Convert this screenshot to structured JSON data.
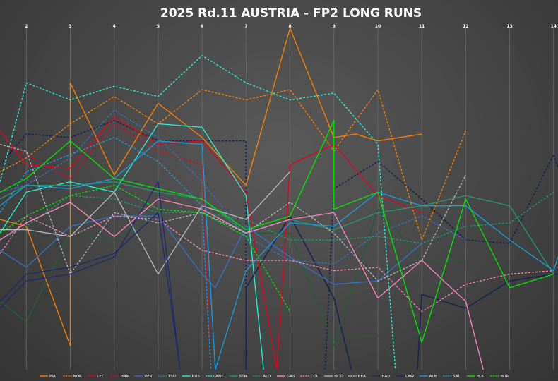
{
  "chart_data": {
    "type": "line",
    "title": "2025 Rd.11 AUSTRIA - FP2 LONG RUNS",
    "xlabel": "",
    "ylabel": "",
    "x_ticks": [
      2,
      3,
      4,
      5,
      6,
      7,
      8,
      9,
      10,
      11,
      12,
      13,
      14
    ],
    "xlim": [
      1.4,
      14.1
    ],
    "ylim": [
      0,
      100
    ],
    "grid": {
      "vertical": true,
      "horizontal": false
    },
    "legend_position": "bottom",
    "series": [
      {
        "name": "PIA",
        "color": "#ff8000",
        "dash": false,
        "values": [
          [
            1.4,
            44
          ],
          [
            2,
            42
          ],
          [
            3,
            7
          ],
          [
            3,
            84
          ],
          [
            4,
            57
          ],
          [
            5,
            78
          ],
          [
            6,
            68
          ],
          [
            7,
            54
          ],
          [
            8,
            100
          ],
          [
            9,
            68
          ],
          [
            9.5,
            69
          ],
          [
            10,
            67
          ],
          [
            11,
            69
          ]
        ]
      },
      {
        "name": "NOR",
        "color": "#ff8000",
        "dash": true,
        "values": [
          [
            1.4,
            58
          ],
          [
            2,
            62
          ],
          [
            3,
            72
          ],
          [
            4,
            80
          ],
          [
            5,
            72
          ],
          [
            6,
            82
          ],
          [
            7,
            79
          ],
          [
            8,
            82
          ],
          [
            9,
            64
          ],
          [
            10,
            82
          ],
          [
            11,
            38
          ],
          [
            12,
            70
          ]
        ]
      },
      {
        "name": "LEC",
        "color": "#e80020",
        "dash": false,
        "values": [
          [
            1.4,
            70
          ],
          [
            2,
            60
          ],
          [
            3,
            59
          ],
          [
            4,
            74
          ],
          [
            5,
            66
          ],
          [
            6,
            67
          ],
          [
            7,
            52
          ],
          [
            7.7,
            0
          ],
          [
            8,
            60
          ],
          [
            9,
            66
          ],
          [
            10,
            51
          ],
          [
            11,
            46
          ]
        ]
      },
      {
        "name": "HAM",
        "color": "#e80020",
        "dash": true,
        "values": [
          [
            1.4,
            66
          ],
          [
            2,
            63
          ],
          [
            3,
            56
          ],
          [
            4,
            72
          ],
          [
            5,
            64
          ],
          [
            6,
            60
          ],
          [
            6.2,
            0
          ]
        ]
      },
      {
        "name": "VER",
        "color": "#3671c6",
        "dash": false,
        "values": [
          [
            1.4,
            35
          ],
          [
            2,
            30
          ],
          [
            3,
            42
          ],
          [
            4,
            45
          ],
          [
            5,
            45
          ],
          [
            6,
            28
          ],
          [
            6.3,
            24
          ],
          [
            7,
            42
          ],
          [
            8,
            33
          ],
          [
            9,
            25
          ],
          [
            10,
            26
          ],
          [
            11,
            37
          ]
        ]
      },
      {
        "name": "TSU",
        "color": "#3671c6",
        "dash": true,
        "values": [
          [
            1.4,
            52
          ],
          [
            2,
            54
          ],
          [
            3,
            62
          ],
          [
            4,
            76
          ],
          [
            5,
            68
          ],
          [
            6,
            55
          ],
          [
            7,
            39
          ],
          [
            8,
            32
          ],
          [
            9,
            31
          ],
          [
            10,
            40
          ],
          [
            11,
            45
          ],
          [
            12,
            38
          ]
        ]
      },
      {
        "name": "RUS",
        "color": "#27f4d2",
        "dash": false,
        "values": [
          [
            1.4,
            40
          ],
          [
            2,
            52
          ],
          [
            3,
            55
          ],
          [
            4,
            52
          ],
          [
            5,
            72
          ],
          [
            6,
            71
          ],
          [
            7,
            51
          ],
          [
            7.4,
            0
          ]
        ]
      },
      {
        "name": "ANT",
        "color": "#27f4d2",
        "dash": true,
        "values": [
          [
            1.4,
            55
          ],
          [
            2,
            84
          ],
          [
            3,
            79
          ],
          [
            4,
            83
          ],
          [
            5,
            80
          ],
          [
            6,
            92
          ],
          [
            7,
            84
          ],
          [
            8,
            79
          ],
          [
            9,
            81
          ],
          [
            10,
            66
          ],
          [
            10.4,
            0
          ]
        ]
      },
      {
        "name": "STR",
        "color": "#229971",
        "dash": false,
        "values": [
          [
            1.4,
            50
          ],
          [
            2,
            54
          ],
          [
            3,
            54
          ],
          [
            4,
            55
          ],
          [
            5,
            52
          ],
          [
            6,
            50
          ],
          [
            7,
            40
          ],
          [
            8,
            44
          ],
          [
            9,
            41
          ],
          [
            10,
            46
          ],
          [
            11,
            48
          ],
          [
            12,
            51
          ],
          [
            13,
            48
          ],
          [
            14,
            28
          ]
        ]
      },
      {
        "name": "ALO",
        "color": "#229971",
        "dash": true,
        "values": [
          [
            1.4,
            38
          ],
          [
            2,
            42
          ],
          [
            3,
            51
          ],
          [
            4,
            50
          ],
          [
            5,
            46
          ],
          [
            6,
            46
          ],
          [
            7,
            44
          ],
          [
            8,
            38
          ],
          [
            9,
            38
          ],
          [
            10,
            39
          ],
          [
            11,
            37
          ],
          [
            12,
            42
          ],
          [
            13,
            43
          ],
          [
            14,
            52
          ]
        ]
      },
      {
        "name": "GAS",
        "color": "#ff87bc",
        "dash": false,
        "values": [
          [
            1.4,
            38
          ],
          [
            2,
            43
          ],
          [
            3,
            49
          ],
          [
            4,
            39
          ],
          [
            5,
            50
          ],
          [
            6,
            47
          ],
          [
            7,
            40
          ],
          [
            8,
            44
          ],
          [
            9,
            46
          ],
          [
            10,
            21
          ],
          [
            11,
            32
          ],
          [
            12,
            20
          ],
          [
            12.4,
            0
          ]
        ]
      },
      {
        "name": "COL",
        "color": "#ff87bc",
        "dash": true,
        "values": [
          [
            1.4,
            34
          ],
          [
            2,
            45
          ],
          [
            3,
            39
          ],
          [
            4,
            45
          ],
          [
            5,
            44
          ],
          [
            6,
            35
          ],
          [
            7,
            32
          ],
          [
            8,
            32
          ],
          [
            9,
            29
          ],
          [
            10,
            30
          ],
          [
            11,
            17
          ],
          [
            12,
            25
          ],
          [
            13,
            28
          ],
          [
            14,
            29
          ]
        ]
      },
      {
        "name": "OCO",
        "color": "#b6babd",
        "dash": false,
        "values": [
          [
            1.4,
            41
          ],
          [
            2,
            41
          ],
          [
            3,
            39
          ],
          [
            4,
            52
          ],
          [
            5,
            28
          ],
          [
            6,
            48
          ],
          [
            7,
            44
          ],
          [
            8,
            58
          ]
        ]
      },
      {
        "name": "BEA",
        "color": "#b6babd",
        "dash": true,
        "values": [
          [
            1.4,
            66
          ],
          [
            2,
            64
          ],
          [
            3,
            28
          ],
          [
            4,
            46
          ],
          [
            5,
            43
          ],
          [
            6,
            46
          ],
          [
            7,
            40
          ],
          [
            8,
            49
          ],
          [
            9,
            40
          ],
          [
            10,
            26
          ],
          [
            11,
            32
          ],
          [
            12,
            57
          ]
        ]
      },
      {
        "name": "HAD",
        "color": "#1e2a6e",
        "dash": false,
        "values": [
          [
            1.4,
            18
          ],
          [
            2,
            26
          ],
          [
            3,
            28
          ],
          [
            4,
            33
          ],
          [
            5,
            55
          ],
          [
            5.5,
            0
          ]
        ]
      },
      {
        "name": "LAW",
        "color": "#1e2a6e",
        "dash": false,
        "values": [
          [
            1.4,
            20
          ],
          [
            2,
            28
          ],
          [
            3,
            30
          ],
          [
            4,
            34
          ],
          [
            5,
            46
          ],
          [
            5.5,
            0
          ]
        ]
      },
      {
        "name": "ALB",
        "color": "#1e9bdc",
        "dash": false,
        "values": [
          [
            1.4,
            48
          ],
          [
            2,
            54
          ],
          [
            3,
            53
          ],
          [
            4,
            56
          ],
          [
            5,
            67
          ],
          [
            6,
            66
          ],
          [
            6.3,
            0
          ],
          [
            7,
            29
          ],
          [
            8,
            43
          ],
          [
            9,
            42
          ],
          [
            10,
            52
          ],
          [
            11,
            48
          ],
          [
            12,
            48
          ],
          [
            13,
            38
          ],
          [
            14,
            29
          ],
          [
            14.1,
            33
          ]
        ]
      },
      {
        "name": "SAI",
        "color": "#1e9bdc",
        "dash": true,
        "values": [
          [
            1.4,
            46
          ],
          [
            2,
            58
          ],
          [
            3,
            63
          ],
          [
            4,
            68
          ],
          [
            5,
            61
          ],
          [
            6,
            48
          ],
          [
            6.2,
            0
          ]
        ]
      },
      {
        "name": "HUL",
        "color": "#00e701",
        "dash": false,
        "values": [
          [
            1.4,
            52
          ],
          [
            2,
            56
          ],
          [
            3,
            67
          ],
          [
            4,
            56
          ],
          [
            5,
            53
          ],
          [
            6,
            50
          ],
          [
            7,
            41
          ],
          [
            8,
            45
          ],
          [
            9,
            73
          ],
          [
            9,
            47
          ],
          [
            10,
            52
          ],
          [
            11,
            8
          ],
          [
            12,
            50
          ],
          [
            13,
            24
          ],
          [
            14,
            28
          ]
        ]
      },
      {
        "name": "BOR",
        "color": "#00e701",
        "dash": true,
        "values": [
          [
            1.4,
            40
          ],
          [
            2,
            45
          ],
          [
            3,
            51
          ],
          [
            4,
            54
          ],
          [
            5,
            47
          ],
          [
            6,
            46
          ],
          [
            7,
            39
          ],
          [
            8,
            17
          ]
        ]
      }
    ],
    "extra_lines": [
      {
        "color": "#1a2450",
        "dash": true,
        "values": [
          [
            1.4,
            60
          ],
          [
            2,
            69
          ],
          [
            3,
            68
          ],
          [
            4,
            73
          ],
          [
            5,
            67
          ],
          [
            6,
            67
          ],
          [
            7,
            67
          ],
          [
            7,
            0
          ]
        ]
      },
      {
        "color": "#1a2450",
        "dash": true,
        "values": [
          [
            8.8,
            0
          ],
          [
            9,
            53
          ],
          [
            10,
            61
          ],
          [
            11,
            50
          ],
          [
            12,
            38
          ],
          [
            13,
            37
          ],
          [
            14,
            63
          ],
          [
            14.1,
            59
          ]
        ]
      },
      {
        "color": "#1a2450",
        "dash": false,
        "values": [
          [
            7,
            0
          ],
          [
            7,
            24
          ],
          [
            8,
            45
          ],
          [
            9,
            21
          ],
          [
            9.4,
            0
          ]
        ]
      },
      {
        "color": "#1a2450",
        "dash": false,
        "values": [
          [
            10.9,
            0
          ],
          [
            11,
            22
          ],
          [
            12,
            18
          ],
          [
            13,
            26
          ],
          [
            14,
            28
          ],
          [
            14.1,
            28
          ]
        ]
      },
      {
        "color": "#2a5a3a",
        "dash": false,
        "values": [
          [
            1.4,
            20
          ],
          [
            2,
            14
          ],
          [
            3,
            40
          ],
          [
            4,
            38
          ],
          [
            5,
            46
          ],
          [
            6,
            46
          ],
          [
            7,
            40
          ],
          [
            8,
            40
          ],
          [
            9,
            7
          ],
          [
            10,
            47
          ],
          [
            11,
            32
          ],
          [
            12,
            32
          ]
        ]
      },
      {
        "color": "#2a5a3a",
        "dash": true,
        "values": [
          [
            9,
            9
          ],
          [
            10,
            10
          ],
          [
            10.5,
            0
          ]
        ]
      }
    ]
  }
}
